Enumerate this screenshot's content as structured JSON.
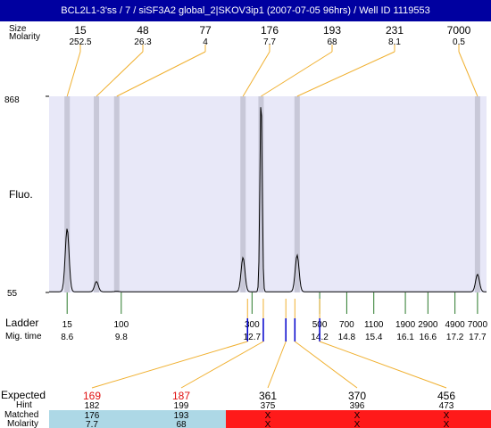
{
  "title": "BCL2L1-3'ss / 7 / siSF3A2 global_2|SKOV3ip1 (2007-07-05 96hrs) / Well ID 1119553",
  "colors": {
    "title_bg": "#0000a0",
    "plot_bg": "#e8e8f8",
    "peak_band": "#c8c8d8",
    "connector": "#f0b030",
    "ladder_tick": "#2a7a2a",
    "marker_tick": "#0000cc",
    "expected_highlight": "#e01010",
    "matched_bg": "#add8e6",
    "unmatched_bg": "#ff1a1a"
  },
  "header": {
    "size_label": "Size",
    "molarity_label": "Molarity",
    "peaks": [
      {
        "size": "15",
        "molarity": "252.5"
      },
      {
        "size": "48",
        "molarity": "26.3"
      },
      {
        "size": "77",
        "molarity": "4"
      },
      {
        "size": "176",
        "molarity": "7.7"
      },
      {
        "size": "193",
        "molarity": "68"
      },
      {
        "size": "231",
        "molarity": "8.1"
      },
      {
        "size": "7000",
        "molarity": "0.5"
      }
    ]
  },
  "plot": {
    "ylabel": "Fluo.",
    "y_top_label": "868",
    "y_bottom_label": "55"
  },
  "ladder": {
    "label": "Ladder",
    "mig_label": "Mig. time",
    "entries": [
      {
        "size": "15",
        "time": "8.6"
      },
      {
        "size": "100",
        "time": "9.8"
      },
      {
        "size": "300",
        "time": "12.7"
      },
      {
        "size": "500",
        "time": "14.2"
      },
      {
        "size": "700",
        "time": "14.8"
      },
      {
        "size": "1100",
        "time": "15.4"
      },
      {
        "size": "1900",
        "time": "16.1"
      },
      {
        "size": "2900",
        "time": "16.6"
      },
      {
        "size": "4900",
        "time": "17.2"
      },
      {
        "size": "7000",
        "time": "17.7"
      }
    ]
  },
  "expected": {
    "expected_label": "Expected",
    "hint_label": "Hint",
    "matched_label": "Matched",
    "molarity_label": "Molarity",
    "columns": [
      {
        "expected": "169",
        "hint": "182",
        "matched": "176",
        "molarity": "7.7",
        "is_matched": true
      },
      {
        "expected": "187",
        "hint": "199",
        "matched": "193",
        "molarity": "68",
        "is_matched": true
      },
      {
        "expected": "361",
        "hint": "375",
        "matched": "X",
        "molarity": "X",
        "is_matched": false
      },
      {
        "expected": "370",
        "hint": "396",
        "matched": "X",
        "molarity": "X",
        "is_matched": false
      },
      {
        "expected": "456",
        "hint": "473",
        "matched": "X",
        "molarity": "X",
        "is_matched": false
      }
    ]
  },
  "chart_data": {
    "type": "line",
    "title": "BCL2L1-3'ss / 7 / siSF3A2 global_2|SKOV3ip1 (2007-07-05 96hrs) / Well ID 1119553",
    "ylabel": "Fluo.",
    "xlabel": "",
    "ylim": [
      55,
      868
    ],
    "grid": false,
    "x_axis": "Mig. time",
    "xlim": [
      8.2,
      17.9
    ],
    "baseline": 58,
    "peaks": [
      {
        "size": 15,
        "molarity": 252.5,
        "time": 8.6,
        "height": 320
      },
      {
        "size": 48,
        "molarity": 26.3,
        "time": 9.25,
        "height": 100
      },
      {
        "size": 77,
        "molarity": 4,
        "time": 9.7,
        "height": 60
      },
      {
        "size": 176,
        "molarity": 7.7,
        "time": 12.5,
        "height": 200
      },
      {
        "size": 193,
        "molarity": 68,
        "time": 12.9,
        "height": 868
      },
      {
        "size": 231,
        "molarity": 8.1,
        "time": 13.7,
        "height": 210
      },
      {
        "size": 7000,
        "molarity": 0.5,
        "time": 17.7,
        "height": 130
      }
    ],
    "ladder": [
      {
        "size": 15,
        "time": 8.6
      },
      {
        "size": 100,
        "time": 9.8
      },
      {
        "size": 300,
        "time": 12.7
      },
      {
        "size": 500,
        "time": 14.2
      },
      {
        "size": 700,
        "time": 14.8
      },
      {
        "size": 1100,
        "time": 15.4
      },
      {
        "size": 1900,
        "time": 16.1
      },
      {
        "size": 2900,
        "time": 16.6
      },
      {
        "size": 4900,
        "time": 17.2
      },
      {
        "size": 7000,
        "time": 17.7
      }
    ],
    "expected_markers": [
      {
        "expected": 169,
        "hint": 182,
        "time": 12.6
      },
      {
        "expected": 187,
        "hint": 199,
        "time": 12.95
      },
      {
        "expected": 361,
        "hint": 375,
        "time": 13.45
      },
      {
        "expected": 370,
        "hint": 396,
        "time": 13.65
      },
      {
        "expected": 456,
        "hint": 473,
        "time": 14.2
      }
    ]
  }
}
